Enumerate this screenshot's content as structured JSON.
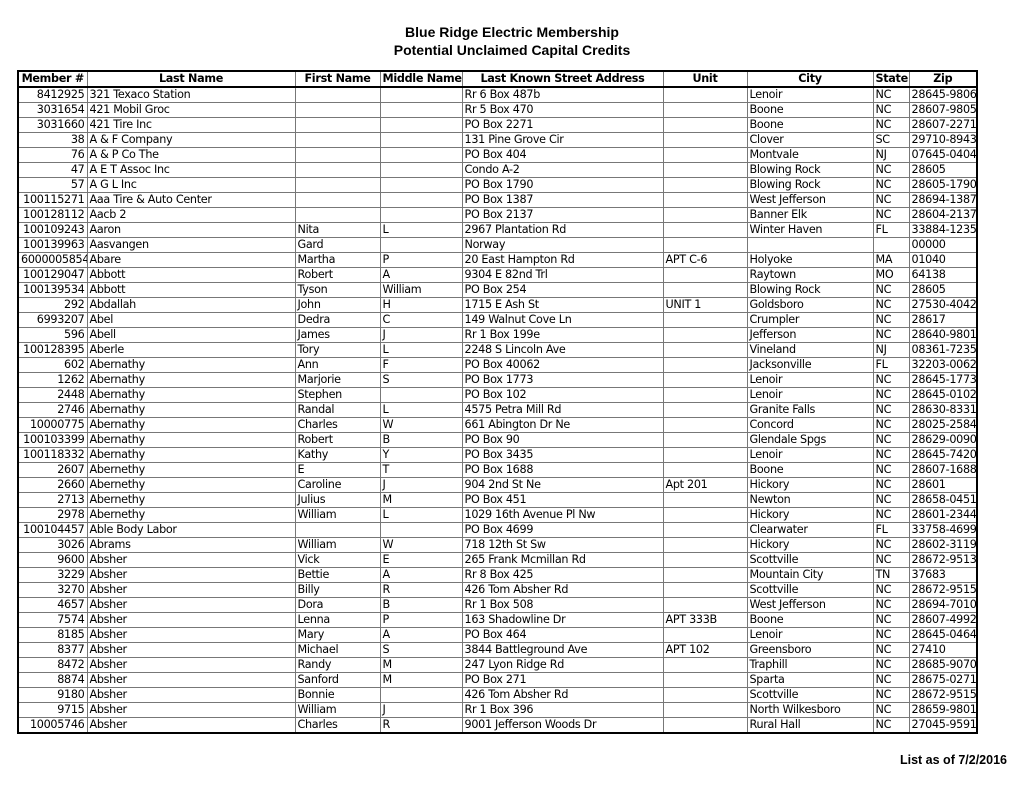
{
  "header": {
    "title": "Blue Ridge Electric Membership",
    "subtitle": "Potential Unclaimed Capital Credits"
  },
  "table": {
    "columns": [
      "Member #",
      "Last Name",
      "First Name",
      "Middle Name",
      "Last Known Street Address",
      "Unit",
      "City",
      "State",
      "Zip"
    ],
    "rows": [
      [
        "8412925",
        "321 Texaco Station",
        "",
        "",
        "Rr 6 Box 487b",
        "",
        "Lenoir",
        "NC",
        "28645-9806"
      ],
      [
        "3031654",
        "421 Mobil Groc",
        "",
        "",
        "Rr 5 Box 470",
        "",
        "Boone",
        "NC",
        "28607-9805"
      ],
      [
        "3031660",
        "421 Tire Inc",
        "",
        "",
        "PO Box 2271",
        "",
        "Boone",
        "NC",
        "28607-2271"
      ],
      [
        "38",
        "A & F Company",
        "",
        "",
        "131 Pine Grove Cir",
        "",
        "Clover",
        "SC",
        "29710-8943"
      ],
      [
        "76",
        "A & P Co The",
        "",
        "",
        "PO Box 404",
        "",
        "Montvale",
        "NJ",
        "07645-0404"
      ],
      [
        "47",
        "A E T Assoc Inc",
        "",
        "",
        "Condo A-2",
        "",
        "Blowing Rock",
        "NC",
        "28605"
      ],
      [
        "57",
        "A G L Inc",
        "",
        "",
        "PO Box 1790",
        "",
        "Blowing Rock",
        "NC",
        "28605-1790"
      ],
      [
        "100115271",
        "Aaa Tire & Auto Center",
        "",
        "",
        "PO Box 1387",
        "",
        "West Jefferson",
        "NC",
        "28694-1387"
      ],
      [
        "100128112",
        "Aacb 2",
        "",
        "",
        "PO Box 2137",
        "",
        "Banner Elk",
        "NC",
        "28604-2137"
      ],
      [
        "100109243",
        "Aaron",
        "Nita",
        "L",
        "2967 Plantation Rd",
        "",
        "Winter Haven",
        "FL",
        "33884-1235"
      ],
      [
        "100139963",
        "Aasvangen",
        "Gard",
        "",
        "Norway",
        "",
        "",
        "",
        "00000"
      ],
      [
        "6000005854",
        "Abare",
        "Martha",
        "P",
        "20 East Hampton Rd",
        "APT C-6",
        "Holyoke",
        "MA",
        "01040"
      ],
      [
        "100129047",
        "Abbott",
        "Robert",
        "A",
        "9304 E 82nd Trl",
        "",
        "Raytown",
        "MO",
        "64138"
      ],
      [
        "100139534",
        "Abbott",
        "Tyson",
        "William",
        "PO Box 254",
        "",
        "Blowing Rock",
        "NC",
        "28605"
      ],
      [
        "292",
        "Abdallah",
        "John",
        "H",
        "1715 E Ash St",
        "UNIT 1",
        "Goldsboro",
        "NC",
        "27530-4042"
      ],
      [
        "6993207",
        "Abel",
        "Dedra",
        "C",
        "149 Walnut Cove Ln",
        "",
        "Crumpler",
        "NC",
        "28617"
      ],
      [
        "596",
        "Abell",
        "James",
        "J",
        "Rr 1 Box 199e",
        "",
        "Jefferson",
        "NC",
        "28640-9801"
      ],
      [
        "100128395",
        "Aberle",
        "Tory",
        "L",
        "2248 S Lincoln Ave",
        "",
        "Vineland",
        "NJ",
        "08361-7235"
      ],
      [
        "602",
        "Abernathy",
        "Ann",
        "F",
        "PO Box 40062",
        "",
        "Jacksonville",
        "FL",
        "32203-0062"
      ],
      [
        "1262",
        "Abernathy",
        "Marjorie",
        "S",
        "PO Box 1773",
        "",
        "Lenoir",
        "NC",
        "28645-1773"
      ],
      [
        "2448",
        "Abernathy",
        "Stephen",
        "",
        "PO Box 102",
        "",
        "Lenoir",
        "NC",
        "28645-0102"
      ],
      [
        "2746",
        "Abernathy",
        "Randal",
        "L",
        "4575 Petra Mill Rd",
        "",
        "Granite Falls",
        "NC",
        "28630-8331"
      ],
      [
        "10000775",
        "Abernathy",
        "Charles",
        "W",
        "661 Abington Dr Ne",
        "",
        "Concord",
        "NC",
        "28025-2584"
      ],
      [
        "100103399",
        "Abernathy",
        "Robert",
        "B",
        "PO Box 90",
        "",
        "Glendale Spgs",
        "NC",
        "28629-0090"
      ],
      [
        "100118332",
        "Abernathy",
        "Kathy",
        "Y",
        "PO Box 3435",
        "",
        "Lenoir",
        "NC",
        "28645-7420"
      ],
      [
        "2607",
        "Abernethy",
        "E",
        "T",
        "PO Box 1688",
        "",
        "Boone",
        "NC",
        "28607-1688"
      ],
      [
        "2660",
        "Abernethy",
        "Caroline",
        "J",
        "904 2nd St Ne",
        "Apt 201",
        "Hickory",
        "NC",
        "28601"
      ],
      [
        "2713",
        "Abernethy",
        "Julius",
        "M",
        "PO Box 451",
        "",
        "Newton",
        "NC",
        "28658-0451"
      ],
      [
        "2978",
        "Abernethy",
        "William",
        "L",
        "1029 16th Avenue Pl Nw",
        "",
        "Hickory",
        "NC",
        "28601-2344"
      ],
      [
        "100104457",
        "Able Body Labor",
        "",
        "",
        "PO Box 4699",
        "",
        "Clearwater",
        "FL",
        "33758-4699"
      ],
      [
        "3026",
        "Abrams",
        "William",
        "W",
        "718 12th St Sw",
        "",
        "Hickory",
        "NC",
        "28602-3119"
      ],
      [
        "9600",
        "Absher",
        "Vick",
        "E",
        "265 Frank Mcmillan Rd",
        "",
        "Scottville",
        "NC",
        "28672-9513"
      ],
      [
        "3229",
        "Absher",
        "Bettie",
        "A",
        "Rr 8 Box 425",
        "",
        "Mountain City",
        "TN",
        "37683"
      ],
      [
        "3270",
        "Absher",
        "Billy",
        "R",
        "426 Tom Absher Rd",
        "",
        "Scottville",
        "NC",
        "28672-9515"
      ],
      [
        "4657",
        "Absher",
        "Dora",
        "B",
        "Rr 1 Box 508",
        "",
        "West Jefferson",
        "NC",
        "28694-7010"
      ],
      [
        "7574",
        "Absher",
        "Lenna",
        "P",
        "163 Shadowline Dr",
        "APT 333B",
        "Boone",
        "NC",
        "28607-4992"
      ],
      [
        "8185",
        "Absher",
        "Mary",
        "A",
        "PO Box 464",
        "",
        "Lenoir",
        "NC",
        "28645-0464"
      ],
      [
        "8377",
        "Absher",
        "Michael",
        "S",
        "3844 Battleground Ave",
        "APT 102",
        "Greensboro",
        "NC",
        "27410"
      ],
      [
        "8472",
        "Absher",
        "Randy",
        "M",
        "247 Lyon Ridge Rd",
        "",
        "Traphill",
        "NC",
        "28685-9070"
      ],
      [
        "8874",
        "Absher",
        "Sanford",
        "M",
        "PO Box 271",
        "",
        "Sparta",
        "NC",
        "28675-0271"
      ],
      [
        "9180",
        "Absher",
        "Bonnie",
        "",
        "426 Tom Absher Rd",
        "",
        "Scottville",
        "NC",
        "28672-9515"
      ],
      [
        "9715",
        "Absher",
        "William",
        "J",
        "Rr 1 Box 396",
        "",
        "North Wilkesboro",
        "NC",
        "28659-9801"
      ],
      [
        "10005746",
        "Absher",
        "Charles",
        "R",
        "9001 Jefferson Woods Dr",
        "",
        "Rural Hall",
        "NC",
        "27045-9591"
      ]
    ]
  },
  "footer": {
    "text": "List as of 7/2/2016"
  }
}
